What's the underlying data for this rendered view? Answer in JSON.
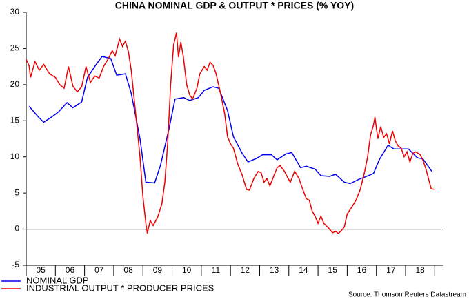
{
  "chart_data": {
    "type": "line",
    "title": "CHINA NOMINAL GDP & OUTPUT * PRICES (% YOY)",
    "source": "Source: Thomson Reuters Datastream",
    "xlim": [
      2005,
      2019.3
    ],
    "ylim": [
      -5,
      30
    ],
    "yticks": [
      -5,
      0,
      5,
      10,
      15,
      20,
      25,
      30
    ],
    "xticks": [
      {
        "value": 2005.5,
        "label": "05"
      },
      {
        "value": 2006.5,
        "label": "06"
      },
      {
        "value": 2007.5,
        "label": "07"
      },
      {
        "value": 2008.5,
        "label": "08"
      },
      {
        "value": 2009.5,
        "label": "09"
      },
      {
        "value": 2010.5,
        "label": "10"
      },
      {
        "value": 2011.5,
        "label": "11"
      },
      {
        "value": 2012.5,
        "label": "12"
      },
      {
        "value": 2013.5,
        "label": "13"
      },
      {
        "value": 2014.5,
        "label": "14"
      },
      {
        "value": 2015.5,
        "label": "15"
      },
      {
        "value": 2016.5,
        "label": "16"
      },
      {
        "value": 2017.5,
        "label": "17"
      },
      {
        "value": 2018.5,
        "label": "18"
      }
    ],
    "series": [
      {
        "name": "NOMINAL GDP",
        "color": "#0000ee",
        "x": [
          2005.1,
          2005.4,
          2005.6,
          2005.9,
          2006.1,
          2006.4,
          2006.6,
          2006.9,
          2007.1,
          2007.4,
          2007.6,
          2007.9,
          2008.1,
          2008.4,
          2008.6,
          2008.9,
          2009.1,
          2009.4,
          2009.6,
          2009.9,
          2010.1,
          2010.4,
          2010.6,
          2010.9,
          2011.1,
          2011.4,
          2011.6,
          2011.9,
          2012.1,
          2012.4,
          2012.6,
          2012.9,
          2013.1,
          2013.4,
          2013.6,
          2013.9,
          2014.1,
          2014.4,
          2014.6,
          2014.9,
          2015.1,
          2015.4,
          2015.6,
          2015.9,
          2016.1,
          2016.4,
          2016.6,
          2016.9,
          2017.1,
          2017.4,
          2017.6,
          2017.9,
          2018.1,
          2018.4,
          2018.6,
          2018.9
        ],
        "values": [
          17.0,
          15.6,
          14.8,
          15.6,
          16.2,
          17.5,
          16.8,
          17.6,
          21.0,
          22.8,
          23.9,
          23.6,
          21.3,
          21.5,
          18.8,
          12.5,
          6.5,
          6.4,
          8.8,
          14.0,
          18.0,
          18.2,
          17.8,
          18.2,
          19.2,
          19.7,
          19.5,
          16.4,
          12.8,
          10.5,
          9.3,
          9.8,
          10.3,
          10.3,
          9.6,
          10.4,
          10.6,
          8.5,
          8.7,
          8.3,
          7.4,
          7.3,
          7.6,
          6.5,
          6.3,
          6.9,
          7.2,
          7.7,
          9.6,
          11.6,
          11.1,
          11.1,
          11.1,
          9.9,
          9.7,
          8.0
        ]
      },
      {
        "name": "INDUSTRIAL OUTPUT * PRODUCER PRICES",
        "color": "#ee0000",
        "x": [
          2005.0,
          2005.1,
          2005.15,
          2005.3,
          2005.45,
          2005.6,
          2005.8,
          2006.0,
          2006.15,
          2006.3,
          2006.45,
          2006.6,
          2006.75,
          2006.9,
          2007.05,
          2007.2,
          2007.35,
          2007.5,
          2007.65,
          2007.8,
          2007.95,
          2008.05,
          2008.2,
          2008.3,
          2008.4,
          2008.5,
          2008.6,
          2008.75,
          2008.9,
          2009.0,
          2009.1,
          2009.15,
          2009.25,
          2009.35,
          2009.5,
          2009.65,
          2009.75,
          2009.85,
          2009.95,
          2010.05,
          2010.15,
          2010.22,
          2010.3,
          2010.38,
          2010.5,
          2010.6,
          2010.7,
          2010.85,
          2010.95,
          2011.1,
          2011.2,
          2011.3,
          2011.4,
          2011.5,
          2011.65,
          2011.8,
          2011.9,
          2012.0,
          2012.1,
          2012.25,
          2012.4,
          2012.55,
          2012.65,
          2012.8,
          2012.95,
          2013.05,
          2013.15,
          2013.25,
          2013.35,
          2013.5,
          2013.6,
          2013.7,
          2013.85,
          2013.95,
          2014.05,
          2014.2,
          2014.35,
          2014.45,
          2014.6,
          2014.7,
          2014.8,
          2014.9,
          2015.0,
          2015.1,
          2015.2,
          2015.35,
          2015.5,
          2015.6,
          2015.7,
          2015.8,
          2015.9,
          2016.0,
          2016.15,
          2016.3,
          2016.45,
          2016.6,
          2016.7,
          2016.8,
          2016.9,
          2016.95,
          2017.05,
          2017.15,
          2017.25,
          2017.35,
          2017.45,
          2017.55,
          2017.65,
          2017.75,
          2017.85,
          2017.95,
          2018.05,
          2018.15,
          2018.25,
          2018.35,
          2018.5,
          2018.6,
          2018.7,
          2018.8,
          2018.88,
          2018.98
        ],
        "values": [
          23.5,
          22.6,
          21.0,
          23.2,
          22.0,
          22.8,
          21.5,
          21.0,
          20.0,
          19.5,
          22.5,
          19.8,
          19.0,
          19.7,
          22.5,
          20.3,
          21.2,
          20.9,
          22.5,
          23.5,
          24.7,
          24.0,
          26.3,
          25.3,
          26.0,
          24.6,
          22.0,
          16.0,
          10.0,
          4.5,
          0.8,
          -0.6,
          1.2,
          0.5,
          1.6,
          3.5,
          6.5,
          12.0,
          20.0,
          25.5,
          27.2,
          23.8,
          25.9,
          24.0,
          20.0,
          18.6,
          18.0,
          19.5,
          21.5,
          22.5,
          22.0,
          23.1,
          22.7,
          21.6,
          19.0,
          16.0,
          12.8,
          11.8,
          11.2,
          9.0,
          7.5,
          5.5,
          5.4,
          7.0,
          8.0,
          7.8,
          6.5,
          7.0,
          6.0,
          7.5,
          8.5,
          8.8,
          8.0,
          7.2,
          6.5,
          8.0,
          7.0,
          5.8,
          4.2,
          4.0,
          2.5,
          1.8,
          0.8,
          1.8,
          0.8,
          0.2,
          -0.5,
          -0.3,
          -0.6,
          -0.2,
          0.3,
          2.1,
          3.0,
          4.0,
          5.5,
          8.0,
          10.0,
          13.0,
          14.4,
          15.5,
          12.5,
          14.2,
          12.7,
          13.2,
          11.8,
          13.6,
          12.2,
          11.5,
          11.2,
          10.0,
          10.7,
          9.3,
          10.5,
          10.7,
          10.3,
          9.5,
          8.3,
          6.8,
          5.6,
          5.5
        ]
      }
    ]
  }
}
